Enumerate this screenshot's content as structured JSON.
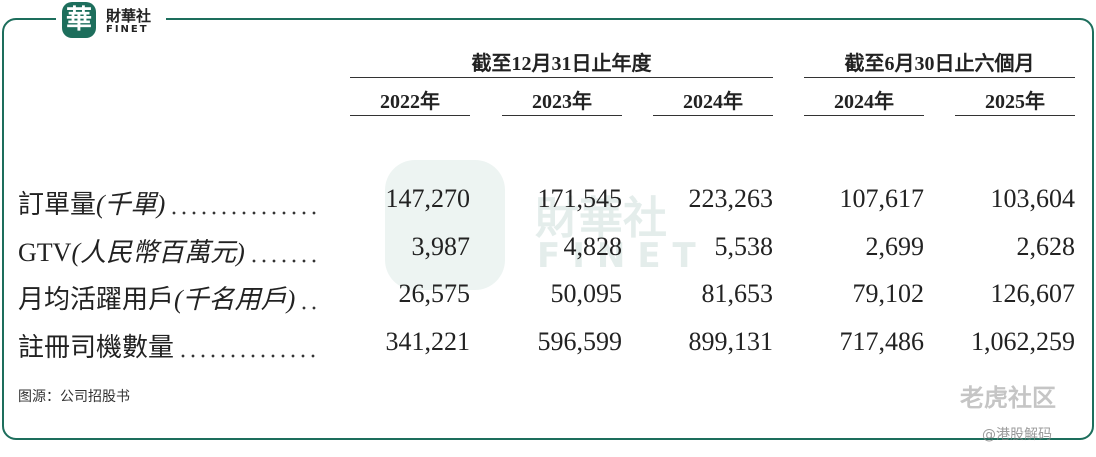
{
  "logo": {
    "mark": "華",
    "name": "財華社",
    "name_en": "FINET"
  },
  "table": {
    "groups": [
      "截至12月31日止年度",
      "截至6月30日止六個月"
    ],
    "columns": [
      "2022年",
      "2023年",
      "2024年",
      "2024年",
      "2025年"
    ],
    "rows": [
      {
        "label": "訂單量",
        "unit": "(千單)",
        "values": [
          "147,270",
          "171,545",
          "223,263",
          "107,617",
          "103,604"
        ]
      },
      {
        "label": "GTV",
        "unit": "(人民幣百萬元)",
        "values": [
          "3,987",
          "4,828",
          "5,538",
          "2,699",
          "2,628"
        ]
      },
      {
        "label": "月均活躍用戶",
        "unit": "(千名用戶)",
        "values": [
          "26,575",
          "50,095",
          "81,653",
          "79,102",
          "126,607"
        ]
      },
      {
        "label": "註冊司機數量",
        "unit": null,
        "values": [
          "341,221",
          "596,599",
          "899,131",
          "717,486",
          "1,062,259"
        ]
      }
    ]
  },
  "source": "图源：公司招股书",
  "watermarks": {
    "center": "財華社",
    "center_en": "FINET",
    "community": "老虎社区",
    "account": "@港股解码"
  }
}
